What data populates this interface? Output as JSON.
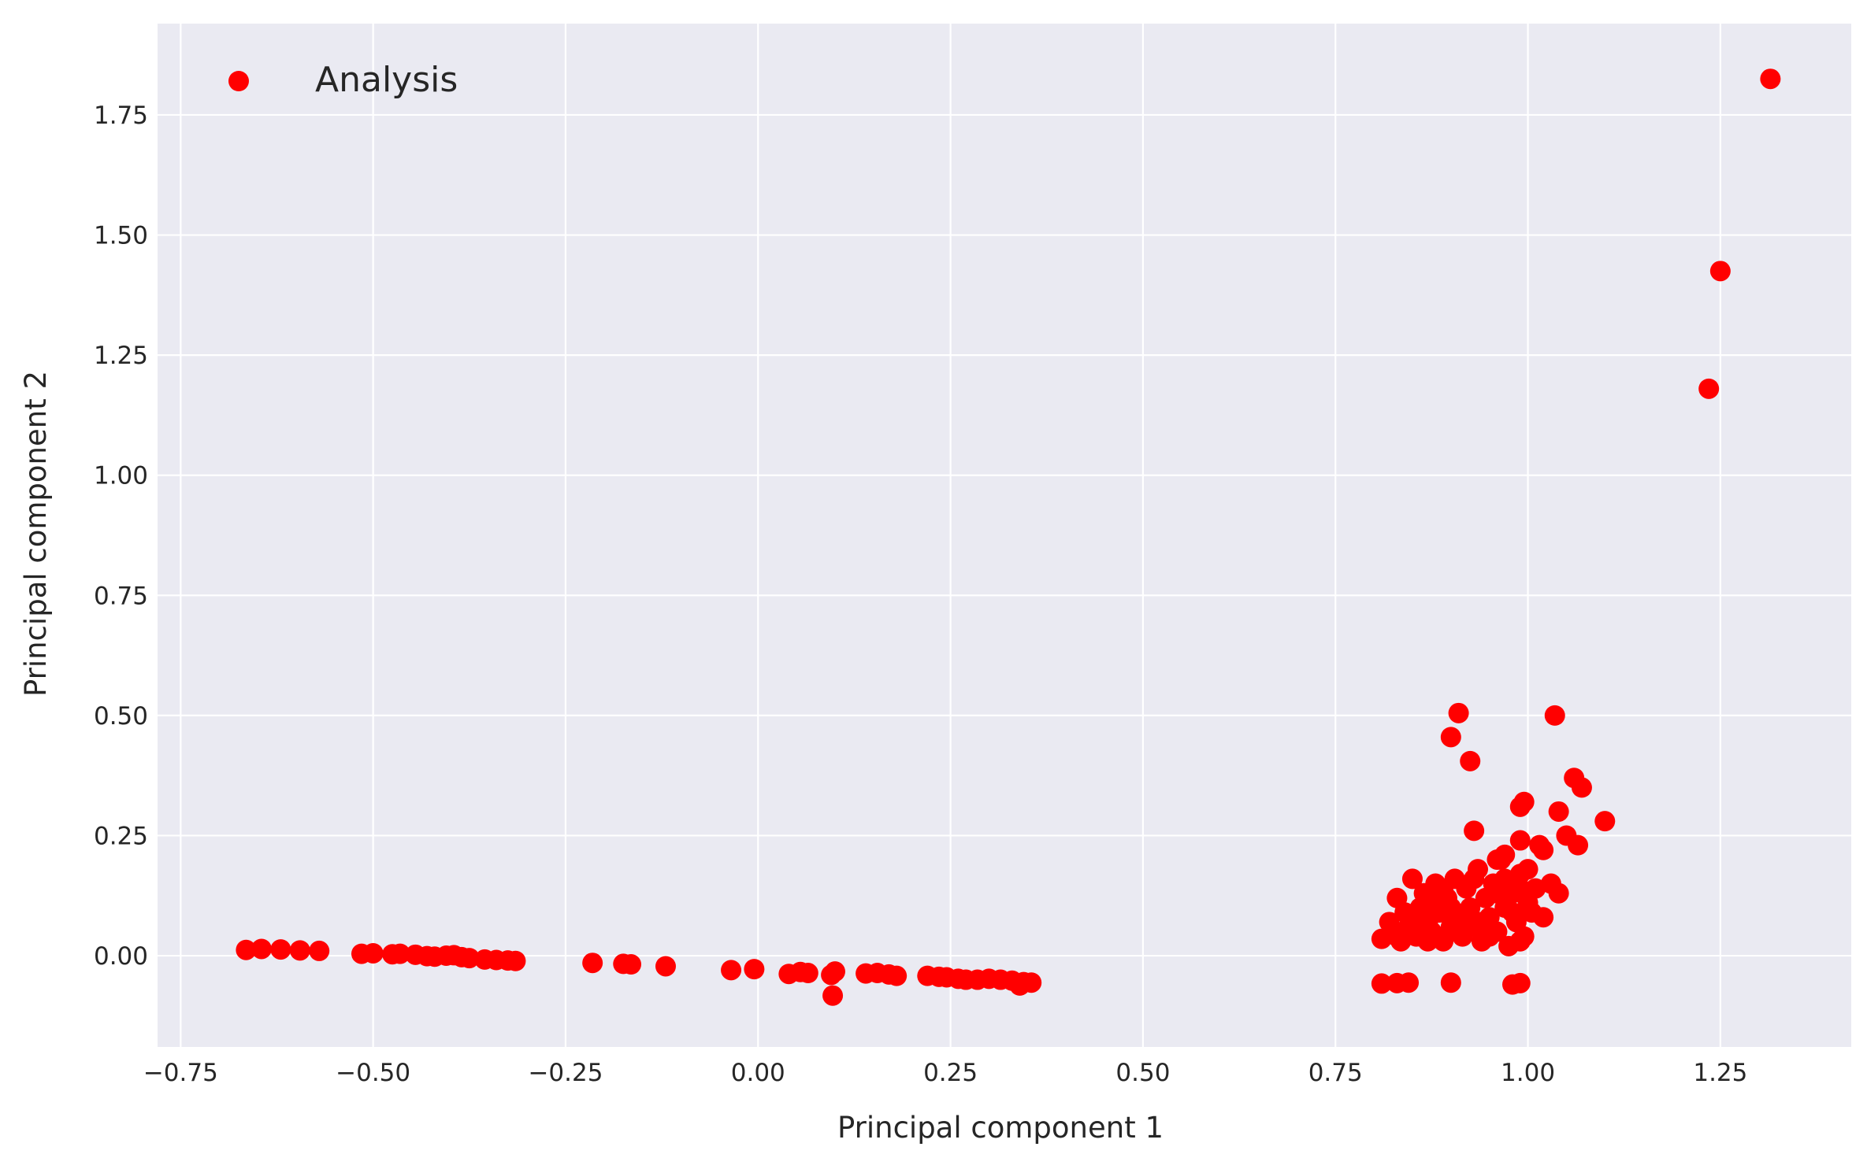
{
  "chart_data": {
    "type": "scatter",
    "title": "",
    "xlabel": "Principal component 1",
    "ylabel": "Principal component 2",
    "xlim": [
      -0.78,
      1.42
    ],
    "ylim": [
      -0.19,
      1.94
    ],
    "xticks": [
      -0.75,
      -0.5,
      -0.25,
      0.0,
      0.25,
      0.5,
      0.75,
      1.0,
      1.25
    ],
    "xtick_labels": [
      "−0.75",
      "−0.50",
      "−0.25",
      "0.00",
      "0.25",
      "0.50",
      "0.75",
      "1.00",
      "1.25"
    ],
    "yticks": [
      0.0,
      0.25,
      0.5,
      0.75,
      1.0,
      1.25,
      1.5,
      1.75
    ],
    "ytick_labels": [
      "0.00",
      "0.25",
      "0.50",
      "0.75",
      "1.00",
      "1.25",
      "1.50",
      "1.75"
    ],
    "grid": true,
    "background_color": "#eaeaf2",
    "grid_color": "#ffffff",
    "legend": {
      "placement": "top-left"
    },
    "series": [
      {
        "name": "Analysis",
        "color": "#ff0000",
        "points": [
          [
            -0.665,
            0.012
          ],
          [
            -0.645,
            0.014
          ],
          [
            -0.62,
            0.013
          ],
          [
            -0.595,
            0.011
          ],
          [
            -0.57,
            0.01
          ],
          [
            -0.515,
            0.004
          ],
          [
            -0.5,
            0.005
          ],
          [
            -0.475,
            0.003
          ],
          [
            -0.465,
            0.004
          ],
          [
            -0.445,
            0.002
          ],
          [
            -0.43,
            -0.001
          ],
          [
            -0.42,
            -0.002
          ],
          [
            -0.405,
            0.0
          ],
          [
            -0.395,
            0.001
          ],
          [
            -0.385,
            -0.003
          ],
          [
            -0.375,
            -0.005
          ],
          [
            -0.355,
            -0.008
          ],
          [
            -0.34,
            -0.009
          ],
          [
            -0.325,
            -0.01
          ],
          [
            -0.315,
            -0.011
          ],
          [
            -0.215,
            -0.015
          ],
          [
            -0.175,
            -0.017
          ],
          [
            -0.165,
            -0.018
          ],
          [
            -0.12,
            -0.022
          ],
          [
            -0.035,
            -0.03
          ],
          [
            -0.005,
            -0.028
          ],
          [
            0.04,
            -0.038
          ],
          [
            0.055,
            -0.034
          ],
          [
            0.065,
            -0.036
          ],
          [
            0.095,
            -0.04
          ],
          [
            0.1,
            -0.033
          ],
          [
            0.097,
            -0.083
          ],
          [
            0.14,
            -0.037
          ],
          [
            0.155,
            -0.036
          ],
          [
            0.17,
            -0.039
          ],
          [
            0.18,
            -0.042
          ],
          [
            0.22,
            -0.042
          ],
          [
            0.235,
            -0.044
          ],
          [
            0.245,
            -0.045
          ],
          [
            0.26,
            -0.048
          ],
          [
            0.27,
            -0.05
          ],
          [
            0.285,
            -0.05
          ],
          [
            0.3,
            -0.048
          ],
          [
            0.315,
            -0.05
          ],
          [
            0.33,
            -0.052
          ],
          [
            0.345,
            -0.055
          ],
          [
            0.355,
            -0.056
          ],
          [
            0.34,
            -0.062
          ],
          [
            0.81,
            0.035
          ],
          [
            0.82,
            0.07
          ],
          [
            0.825,
            0.05
          ],
          [
            0.83,
            0.12
          ],
          [
            0.835,
            0.03
          ],
          [
            0.84,
            0.09
          ],
          [
            0.845,
            0.06
          ],
          [
            0.85,
            0.16
          ],
          [
            0.855,
            0.04
          ],
          [
            0.86,
            0.1
          ],
          [
            0.865,
            0.13
          ],
          [
            0.87,
            0.07
          ],
          [
            0.875,
            0.05
          ],
          [
            0.88,
            0.15
          ],
          [
            0.885,
            0.09
          ],
          [
            0.89,
            0.03
          ],
          [
            0.895,
            0.12
          ],
          [
            0.9,
            0.06
          ],
          [
            0.905,
            0.16
          ],
          [
            0.91,
            0.08
          ],
          [
            0.915,
            0.04
          ],
          [
            0.92,
            0.14
          ],
          [
            0.925,
            0.1
          ],
          [
            0.93,
            0.06
          ],
          [
            0.935,
            0.18
          ],
          [
            0.94,
            0.03
          ],
          [
            0.945,
            0.12
          ],
          [
            0.95,
            0.08
          ],
          [
            0.955,
            0.15
          ],
          [
            0.96,
            0.05
          ],
          [
            0.965,
            0.2
          ],
          [
            0.97,
            0.1
          ],
          [
            0.975,
            0.02
          ],
          [
            0.98,
            0.13
          ],
          [
            0.985,
            0.07
          ],
          [
            0.99,
            0.17
          ],
          [
            0.995,
            0.04
          ],
          [
            1.0,
            0.11
          ],
          [
            1.005,
            0.09
          ],
          [
            1.01,
            0.14
          ],
          [
            1.02,
            0.08
          ],
          [
            1.03,
            0.15
          ],
          [
            1.04,
            0.13
          ],
          [
            0.86,
            0.045
          ],
          [
            0.88,
            0.11
          ],
          [
            0.9,
            0.1
          ],
          [
            0.92,
            0.09
          ],
          [
            0.94,
            0.07
          ],
          [
            0.96,
            0.13
          ],
          [
            0.98,
            0.09
          ],
          [
            0.87,
            0.03
          ],
          [
            0.91,
            0.05
          ],
          [
            0.95,
            0.04
          ],
          [
            0.99,
            0.03
          ],
          [
            0.83,
            0.04
          ],
          [
            0.89,
            0.14
          ],
          [
            0.93,
            0.16
          ],
          [
            0.97,
            0.16
          ],
          [
            0.85,
            0.08
          ],
          [
            0.99,
            0.14
          ],
          [
            0.81,
            -0.058
          ],
          [
            0.83,
            -0.057
          ],
          [
            0.845,
            -0.056
          ],
          [
            0.9,
            -0.056
          ],
          [
            0.98,
            -0.06
          ],
          [
            0.99,
            -0.057
          ],
          [
            0.9,
            0.455
          ],
          [
            0.91,
            0.505
          ],
          [
            0.925,
            0.405
          ],
          [
            0.93,
            0.26
          ],
          [
            0.99,
            0.31
          ],
          [
            0.995,
            0.32
          ],
          [
            0.99,
            0.24
          ],
          [
            1.0,
            0.18
          ],
          [
            1.015,
            0.23
          ],
          [
            1.02,
            0.22
          ],
          [
            1.035,
            0.5
          ],
          [
            1.04,
            0.3
          ],
          [
            1.05,
            0.25
          ],
          [
            1.06,
            0.37
          ],
          [
            1.065,
            0.23
          ],
          [
            1.07,
            0.35
          ],
          [
            1.1,
            0.28
          ],
          [
            0.97,
            0.21
          ],
          [
            0.96,
            0.2
          ],
          [
            1.235,
            1.18
          ],
          [
            1.25,
            1.425
          ],
          [
            1.315,
            1.825
          ]
        ]
      }
    ]
  }
}
